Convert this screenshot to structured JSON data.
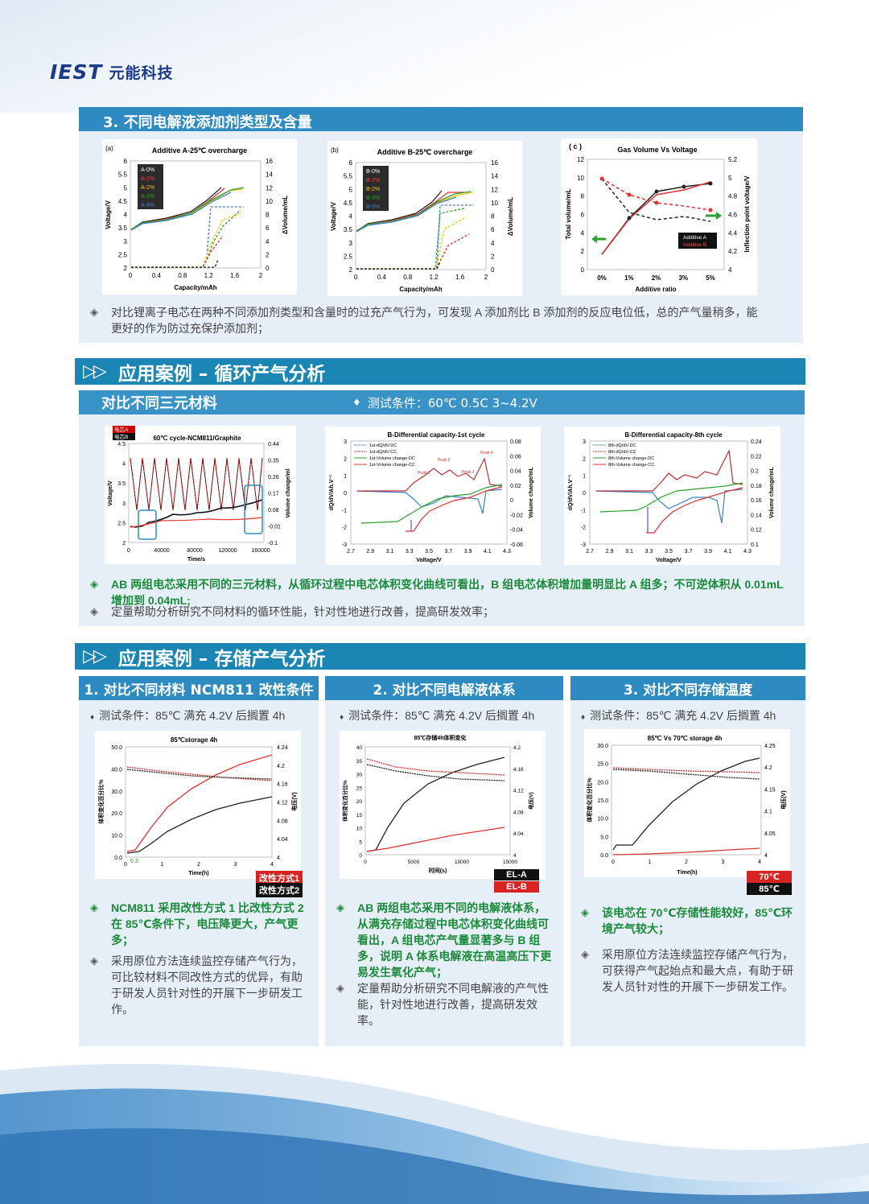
{
  "brand": {
    "mark": "IEST",
    "name": "元能科技"
  },
  "section3": {
    "title": "3. 不同电解液添加剂类型及含量",
    "chart_a": {
      "tag": "(a)",
      "title": "Additive A-25℃ overcharge",
      "ylabel": "Voltage/V",
      "y2label": "ΔVolume/mL",
      "xlabel": "Capacity/mAh",
      "legend": [
        "A-0%",
        "A-1%",
        "A-2%",
        "A-3%",
        "A-5%"
      ],
      "yticks": [
        "2",
        "2.5",
        "3",
        "3.5",
        "4",
        "4.5",
        "5",
        "5.5",
        "6"
      ],
      "y2ticks": [
        "0",
        "2",
        "4",
        "6",
        "8",
        "10",
        "12",
        "14",
        "16"
      ],
      "xticks": [
        "0",
        "0.4",
        "0.8",
        "1.2",
        "1.6",
        "2"
      ]
    },
    "chart_b": {
      "tag": "(b)",
      "title": "Additive B-25℃ overcharge",
      "ylabel": "Voltage/V",
      "y2label": "ΔVolume/mL",
      "xlabel": "Capacity/mAh",
      "legend": [
        "B-0%",
        "B-1%",
        "B-2%",
        "B-3%",
        "B-5%"
      ],
      "yticks": [
        "2",
        "2.5",
        "3",
        "3.5",
        "4",
        "4.5",
        "5",
        "5.5",
        "6"
      ],
      "y2ticks": [
        "0",
        "2",
        "4",
        "6",
        "8",
        "10",
        "12",
        "14",
        "16"
      ],
      "xticks": [
        "0",
        "0.4",
        "0.8",
        "1.2",
        "1.6",
        "2"
      ]
    },
    "chart_c": {
      "tag": "( c )",
      "title": "Gas Volume Vs Voltage",
      "ylabel": "Total volume/mL",
      "y2label": "Inflection point voltage/V",
      "xlabel": "Additive ratio",
      "legend": [
        "Additive A",
        "Additive B"
      ],
      "yticks": [
        "0",
        "2",
        "4",
        "6",
        "8",
        "10",
        "12"
      ],
      "y2ticks": [
        "4",
        "4.2",
        "4.4",
        "4.6",
        "4.8",
        "5",
        "5.2"
      ],
      "xticks": [
        "0%",
        "1%",
        "2%",
        "3%",
        "5%"
      ]
    },
    "bullet": "对比锂离子电芯在两种不同添加剂类型和含量时的过充产气行为，可发现 A 添加剂比 B 添加剂的反应电位低，总的产气量稍多，能更好的作为防过充保护添加剂；"
  },
  "cycle": {
    "heading": "应用案例 – 循环产气分析",
    "sub": "对比不同三元材料",
    "condition": "测试条件：60℃ 0.5C 3~4.2V",
    "chart1": {
      "title": "60℃ cycle-NCM811/Graphite",
      "legend": [
        "电芯A",
        "电芯B"
      ],
      "ylabel": "Voltage/V",
      "y2label": "Volume change/ml",
      "xlabel": "Time/s",
      "yticks": [
        "2",
        "2.5",
        "3",
        "3.5",
        "4",
        "4.5"
      ],
      "y2ticks": [
        "-0.1",
        "-0.01",
        "0.08",
        "0.17",
        "0.26",
        "0.35",
        "0.44"
      ],
      "xticks": [
        "0",
        "40000",
        "80000",
        "120000",
        "160000"
      ]
    },
    "chart2": {
      "title": "B-Differential capacity-1st cycle",
      "legend": [
        "1st-dQ/dV-DC",
        "1st-dQ/dV-CC",
        "1st-Volume change-DC",
        "1st-Volume change-CC"
      ],
      "peaks": [
        "Peak 1",
        "Peak 2",
        "Peak 3",
        "Peak 4"
      ],
      "ylabel": "dQ/dV/Ah.V⁻¹",
      "y2label": "Volume change/mL",
      "xlabel": "Voltage/V",
      "yticks": [
        "-3",
        "-2",
        "-1",
        "0",
        "1",
        "2",
        "3"
      ],
      "y2ticks": [
        "-0.06",
        "-0.04",
        "-0.02",
        "0",
        "0.02",
        "0.04",
        "0.06",
        "0.08"
      ],
      "xticks": [
        "2.7",
        "2.9",
        "3.1",
        "3.3",
        "3.5",
        "3.7",
        "3.9",
        "4.1",
        "4.3"
      ]
    },
    "chart3": {
      "title": "B-Differential capacity-8th cycle",
      "legend": [
        "8th-dQ/dV-DC",
        "8th-dQ/dV-CC",
        "8th-Volume change-DC",
        "8th-Volume change-CC"
      ],
      "ylabel": "dQ/dV/Ah.V⁻¹",
      "y2label": "Volume change/mL",
      "xlabel": "Voltage/V",
      "yticks": [
        "-3",
        "-2",
        "-1",
        "0",
        "1",
        "2",
        "3"
      ],
      "y2ticks": [
        "0.1",
        "0.12",
        "0.14",
        "0.16",
        "0.18",
        "0.2",
        "0.22",
        "0.24"
      ],
      "xticks": [
        "2.7",
        "2.9",
        "3.1",
        "3.3",
        "3.5",
        "3.7",
        "3.9",
        "4.1",
        "4.3"
      ]
    },
    "bullet1": "AB 两组电芯采用不同的三元材料，从循环过程中电芯体积变化曲线可看出，B 组电芯体积增加量明显比 A 组多；不可逆体积从 0.01mL 增加到 0.04mL;",
    "bullet2": "定量帮助分析研究不同材料的循环性能，针对性地进行改善，提高研发效率；"
  },
  "storage": {
    "heading": "应用案例 – 存储产气分析",
    "col1": {
      "title": "1. 对比不同材料 NCM811 改性条件",
      "condition": "测试条件：85℃ 满充 4.2V 后搁置 4h",
      "chart": {
        "title": "85℃storage 4h",
        "ylabel": "体积变化百分比%",
        "y2label": "电压(V)",
        "xlabel": "Time(h)",
        "yticks": [
          "0.0",
          "10.0",
          "20.0",
          "30.0",
          "40.0",
          "50.0"
        ],
        "y2ticks": [
          "4",
          "4.04",
          "4.08",
          "4.12",
          "4.16",
          "4.2",
          "4.24"
        ],
        "xticks": [
          "0",
          "1",
          "2",
          "3",
          "4"
        ],
        "note": "0.3"
      },
      "legend": [
        "改性方式1",
        "改性方式2"
      ],
      "bullet1": "NCM811 采用改性方式 1 比改性方式 2 在 85℃条件下，电压降更大，产气更多；",
      "bullet2": "采用原位方法连续监控存储产气行为，可比较材料不同改性方式的优异，有助于研发人员针对性的开展下一步研发工作。"
    },
    "col2": {
      "title": "2. 对比不同电解液体系",
      "condition": "测试条件：85℃ 满充 4.2V 后搁置 4h",
      "chart": {
        "title": "85℃存储4h体积变化",
        "ylabel": "体积变化百分比%",
        "y2label": "电压(V)",
        "xlabel": "时间(s)",
        "yticks": [
          "0",
          "5",
          "10",
          "15",
          "20",
          "25",
          "30",
          "35",
          "40"
        ],
        "y2ticks": [
          "4",
          "4.04",
          "4.08",
          "4.12",
          "4.16",
          "4.2"
        ],
        "xticks": [
          "0",
          "5000",
          "10000",
          "15000"
        ]
      },
      "legend": [
        "EL-A",
        "EL-B"
      ],
      "bullet1": "AB 两组电芯采用不同的电解液体系，从满充存储过程中电芯体积变化曲线可看出，A 组电芯产气量显著多与 B 组多，说明 A 体系电解液在高温高压下更易发生氧化产气；",
      "bullet2": "定量帮助分析研究不同电解液的产气性能，针对性地进行改善，提高研发效率。"
    },
    "col3": {
      "title": "3. 对比不同存储温度",
      "condition": "测试条件：85℃ 满充 4.2V 后搁置 4h",
      "chart": {
        "title": "85℃ Vs 70℃ storage 4h",
        "ylabel": "体积变化百分比%",
        "y2label": "电压(V)",
        "xlabel": "Time(h)",
        "yticks": [
          "0.0",
          "5.0",
          "10.0",
          "15.0",
          "20.0",
          "25.0",
          "30.0"
        ],
        "y2ticks": [
          "4",
          "4.05",
          "4.1",
          "4.15",
          "4.2",
          "4.25"
        ],
        "xticks": [
          "0",
          "1",
          "2",
          "3",
          "4"
        ]
      },
      "legend": [
        "70℃",
        "85℃"
      ],
      "bullet1": "该电芯在 70℃存储性能较好，85℃环境产气较大；",
      "bullet2": "采用原位方法连续监控存储产气行为，可获得产气起始点和最大点，有助于研发人员针对性的开展下一步研发工作。"
    }
  },
  "colors": {
    "primary": "#2e8bc2",
    "dark": "#1b86b3",
    "panel": "#e6eff7",
    "green": "#1b8a3a"
  }
}
